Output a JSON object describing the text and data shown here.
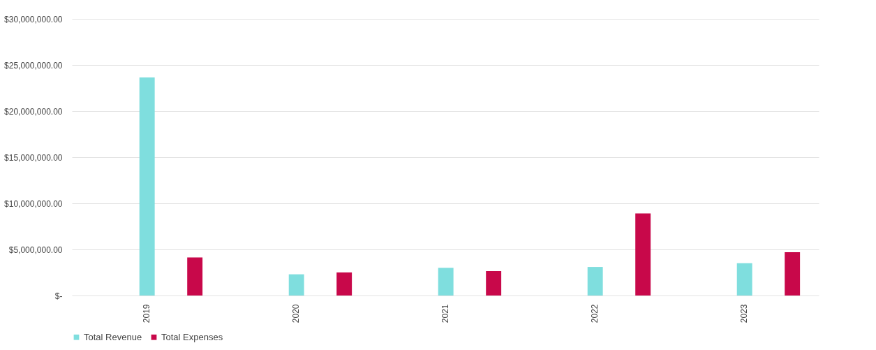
{
  "chart_data": {
    "type": "bar",
    "categories": [
      "2019",
      "2020",
      "2021",
      "2022",
      "2023"
    ],
    "series": [
      {
        "name": "Total Revenue",
        "color": "#7fdede",
        "values": [
          23650000,
          2300000,
          3000000,
          3100000,
          3500000
        ]
      },
      {
        "name": "Total Expenses",
        "color": "#c8084a",
        "values": [
          4130000,
          2500000,
          2650000,
          8900000,
          4700000
        ]
      }
    ],
    "ylim": [
      0,
      30000000
    ],
    "yticks": [
      {
        "value": 0,
        "label": "$-"
      },
      {
        "value": 5000000,
        "label": "$5,000,000.00"
      },
      {
        "value": 10000000,
        "label": "$10,000,000.00"
      },
      {
        "value": 15000000,
        "label": "$15,000,000.00"
      },
      {
        "value": 20000000,
        "label": "$20,000,000.00"
      },
      {
        "value": 25000000,
        "label": "$25,000,000.00"
      },
      {
        "value": 30000000,
        "label": "$30,000,000.00"
      }
    ],
    "grid": "y",
    "legend": "bottom"
  }
}
